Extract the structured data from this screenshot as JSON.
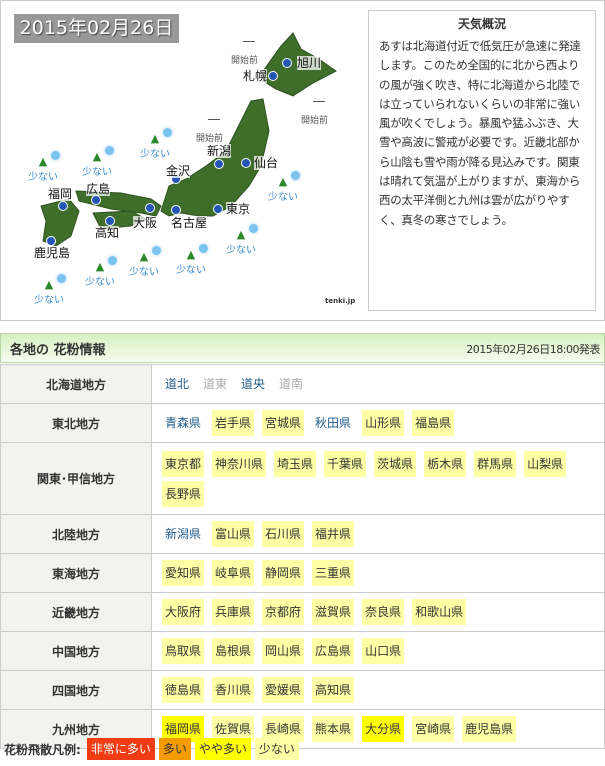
{
  "map": {
    "date": "2015年02月26日",
    "credit": "tenki.jp",
    "cities": [
      {
        "name": "旭川"
      },
      {
        "name": "札幌"
      },
      {
        "name": "仙台"
      },
      {
        "name": "新潟"
      },
      {
        "name": "金沢"
      },
      {
        "name": "広島"
      },
      {
        "name": "福岡"
      },
      {
        "name": "大阪"
      },
      {
        "name": "名古屋"
      },
      {
        "name": "東京"
      },
      {
        "name": "高知"
      },
      {
        "name": "鹿児島"
      }
    ],
    "not_started": "開始前",
    "few": "少ない"
  },
  "summary": {
    "title": "天気概況",
    "text": "あすは北海道付近で低気圧が急速に発達します。このため全国的に北から西よりの風が強く吹き、特に北海道から北陸では立っていられないくらいの非常に強い風が吹くでしょう。暴風や猛ふぶき、大雪や高波に警戒が必要です。近畿北部から山陰も雪や雨が降る見込みです。関東は晴れて気温が上がりますが、東海から西の太平洋側と九州は雲が広がりやすく、真冬の寒さでしょう。"
  },
  "pollen": {
    "title": "各地の 花粉情報",
    "issued": "2015年02月26日18:00発表",
    "colors": {
      "few": "#ffffa6",
      "moderate": "#ffff00",
      "many": "#f49b00",
      "very_many": "#f03c14"
    },
    "regions": [
      {
        "name": "北海道地方",
        "prefs": [
          {
            "n": "道北",
            "lv": "none"
          },
          {
            "n": "道東",
            "lv": "off"
          },
          {
            "n": "道央",
            "lv": "none"
          },
          {
            "n": "道南",
            "lv": "off"
          }
        ]
      },
      {
        "name": "東北地方",
        "prefs": [
          {
            "n": "青森県",
            "lv": "none"
          },
          {
            "n": "岩手県",
            "lv": "few"
          },
          {
            "n": "宮城県",
            "lv": "few"
          },
          {
            "n": "秋田県",
            "lv": "none"
          },
          {
            "n": "山形県",
            "lv": "few"
          },
          {
            "n": "福島県",
            "lv": "few"
          }
        ]
      },
      {
        "name": "関東･甲信地方",
        "prefs": [
          {
            "n": "東京都",
            "lv": "few"
          },
          {
            "n": "神奈川県",
            "lv": "few"
          },
          {
            "n": "埼玉県",
            "lv": "few"
          },
          {
            "n": "千葉県",
            "lv": "few"
          },
          {
            "n": "茨城県",
            "lv": "few"
          },
          {
            "n": "栃木県",
            "lv": "few"
          },
          {
            "n": "群馬県",
            "lv": "few"
          },
          {
            "n": "山梨県",
            "lv": "few"
          },
          {
            "n": "長野県",
            "lv": "few"
          }
        ]
      },
      {
        "name": "北陸地方",
        "prefs": [
          {
            "n": "新潟県",
            "lv": "none"
          },
          {
            "n": "富山県",
            "lv": "few"
          },
          {
            "n": "石川県",
            "lv": "few"
          },
          {
            "n": "福井県",
            "lv": "few"
          }
        ]
      },
      {
        "name": "東海地方",
        "prefs": [
          {
            "n": "愛知県",
            "lv": "few"
          },
          {
            "n": "岐阜県",
            "lv": "few"
          },
          {
            "n": "静岡県",
            "lv": "few"
          },
          {
            "n": "三重県",
            "lv": "few"
          }
        ]
      },
      {
        "name": "近畿地方",
        "prefs": [
          {
            "n": "大阪府",
            "lv": "few"
          },
          {
            "n": "兵庫県",
            "lv": "few"
          },
          {
            "n": "京都府",
            "lv": "few"
          },
          {
            "n": "滋賀県",
            "lv": "few"
          },
          {
            "n": "奈良県",
            "lv": "few"
          },
          {
            "n": "和歌山県",
            "lv": "few"
          }
        ]
      },
      {
        "name": "中国地方",
        "prefs": [
          {
            "n": "鳥取県",
            "lv": "few"
          },
          {
            "n": "島根県",
            "lv": "few"
          },
          {
            "n": "岡山県",
            "lv": "few"
          },
          {
            "n": "広島県",
            "lv": "few"
          },
          {
            "n": "山口県",
            "lv": "few"
          }
        ]
      },
      {
        "name": "四国地方",
        "prefs": [
          {
            "n": "徳島県",
            "lv": "few"
          },
          {
            "n": "香川県",
            "lv": "few"
          },
          {
            "n": "愛媛県",
            "lv": "few"
          },
          {
            "n": "高知県",
            "lv": "few"
          }
        ]
      },
      {
        "name": "九州地方",
        "prefs": [
          {
            "n": "福岡県",
            "lv": "mod"
          },
          {
            "n": "佐賀県",
            "lv": "few"
          },
          {
            "n": "長崎県",
            "lv": "few"
          },
          {
            "n": "熊本県",
            "lv": "few"
          },
          {
            "n": "大分県",
            "lv": "mod"
          },
          {
            "n": "宮崎県",
            "lv": "few"
          },
          {
            "n": "鹿児島県",
            "lv": "few"
          }
        ]
      }
    ]
  },
  "legend": {
    "label": "花粉飛散凡例:",
    "items": [
      {
        "n": "非常に多い",
        "lv": "vmany"
      },
      {
        "n": "多い",
        "lv": "many"
      },
      {
        "n": "やや多い",
        "lv": "mod"
      },
      {
        "n": "少ない",
        "lv": "few"
      }
    ]
  }
}
